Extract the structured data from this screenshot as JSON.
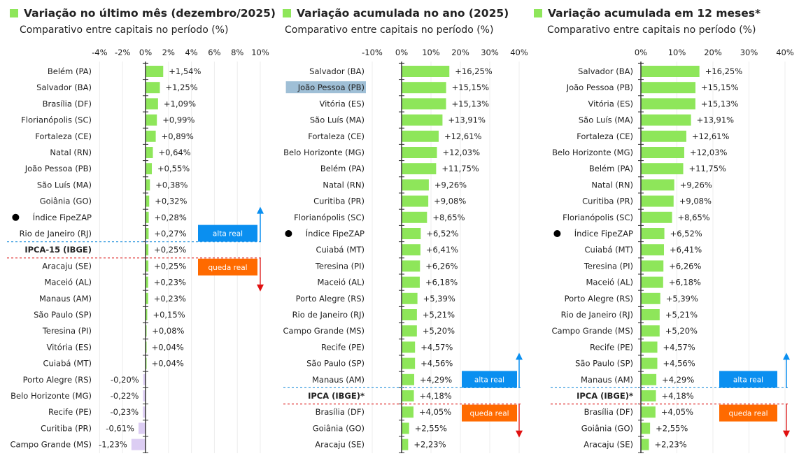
{
  "colors": {
    "bar": "#8ee65a",
    "neg_bar": "#dccdf3",
    "alta": "#0a8ff0",
    "queda": "#ff6a00",
    "alta_line": "#3a9de0",
    "queda_line": "#e03030",
    "highlight": "#9fbfd6"
  },
  "chart_data": [
    {
      "type": "bar",
      "orientation": "horizontal",
      "title": "Variação no último mês (dezembro/2025)",
      "subtitle": "Comparativo entre capitais no período (%)",
      "xlim": [
        -4,
        10
      ],
      "xticks": [
        -4,
        -2,
        0,
        2,
        4,
        6,
        8,
        10
      ],
      "xtick_labels": [
        "-4%",
        "-2%",
        "0%",
        "2%",
        "4%",
        "6%",
        "8%",
        "10%"
      ],
      "categories": [
        "Belém (PA)",
        "Salvador (BA)",
        "Brasília (DF)",
        "Florianópolis (SC)",
        "Fortaleza (CE)",
        "Natal (RN)",
        "João Pessoa (PB)",
        "São Luís (MA)",
        "Goiânia (GO)",
        "Índice FipeZAP",
        "Rio de Janeiro (RJ)",
        "IPCA-15 (IBGE)",
        "Aracaju (SE)",
        "Maceió (AL)",
        "Manaus (AM)",
        "São Paulo (SP)",
        "Teresina (PI)",
        "Vitória (ES)",
        "Cuiabá (MT)",
        "Porto Alegre (RS)",
        "Belo Horizonte (MG)",
        "Recife (PE)",
        "Curitiba (PR)",
        "Campo Grande (MS)"
      ],
      "values": [
        1.54,
        1.25,
        1.09,
        0.99,
        0.89,
        0.64,
        0.55,
        0.38,
        0.32,
        0.28,
        0.27,
        0.25,
        0.25,
        0.23,
        0.23,
        0.15,
        0.08,
        0.04,
        0.04,
        -0.2,
        -0.22,
        -0.23,
        -0.61,
        -1.23
      ],
      "value_labels": [
        "+1,54%",
        "+1,25%",
        "+1,09%",
        "+0,99%",
        "+0,89%",
        "+0,64%",
        "+0,55%",
        "+0,38%",
        "+0,32%",
        "+0,28%",
        "+0,27%",
        "+0,25%",
        "+0,25%",
        "+0,23%",
        "+0,23%",
        "+0,15%",
        "+0,08%",
        "+0,04%",
        "+0,04%",
        "-0,20%",
        "-0,22%",
        "-0,23%",
        "-0,61%",
        "-1,23%"
      ],
      "index_category": "Índice FipeZAP",
      "reference_category": "IPCA-15 (IBGE)",
      "highlight_category": null,
      "annotations": {
        "alta": "alta real",
        "queda": "queda real"
      }
    },
    {
      "type": "bar",
      "orientation": "horizontal",
      "title": "Variação acumulada no ano (2025)",
      "subtitle": "Comparativo entre capitais no período (%)",
      "xlim": [
        -10,
        40
      ],
      "xticks": [
        -10,
        0,
        10,
        20,
        30,
        40
      ],
      "xtick_labels": [
        "-10%",
        "0%",
        "10%",
        "20%",
        "30%",
        "40%"
      ],
      "categories": [
        "Salvador (BA)",
        "João Pessoa (PB)",
        "Vitória (ES)",
        "São Luís (MA)",
        "Fortaleza (CE)",
        "Belo Horizonte (MG)",
        "Belém (PA)",
        "Natal (RN)",
        "Curitiba (PR)",
        "Florianópolis (SC)",
        "Índice FipeZAP",
        "Cuiabá (MT)",
        "Teresina (PI)",
        "Maceió (AL)",
        "Porto Alegre (RS)",
        "Rio de Janeiro (RJ)",
        "Campo Grande (MS)",
        "Recife (PE)",
        "São Paulo (SP)",
        "Manaus (AM)",
        "IPCA (IBGE)*",
        "Brasília (DF)",
        "Goiânia (GO)",
        "Aracaju (SE)"
      ],
      "values": [
        16.25,
        15.15,
        15.13,
        13.91,
        12.61,
        12.03,
        11.75,
        9.26,
        9.08,
        8.65,
        6.52,
        6.41,
        6.26,
        6.18,
        5.39,
        5.21,
        5.2,
        4.57,
        4.56,
        4.29,
        4.18,
        4.05,
        2.55,
        2.23
      ],
      "value_labels": [
        "+16,25%",
        "+15,15%",
        "+15,13%",
        "+13,91%",
        "+12,61%",
        "+12,03%",
        "+11,75%",
        "+9,26%",
        "+9,08%",
        "+8,65%",
        "+6,52%",
        "+6,41%",
        "+6,26%",
        "+6,18%",
        "+5,39%",
        "+5,21%",
        "+5,20%",
        "+4,57%",
        "+4,56%",
        "+4,29%",
        "+4,18%",
        "+4,05%",
        "+2,55%",
        "+2,23%"
      ],
      "index_category": "Índice FipeZAP",
      "reference_category": "IPCA (IBGE)*",
      "highlight_category": "João Pessoa (PB)",
      "annotations": {
        "alta": "alta real",
        "queda": "queda real"
      }
    },
    {
      "type": "bar",
      "orientation": "horizontal",
      "title": "Variação acumulada em 12 meses*",
      "subtitle": "Comparativo entre capitais no período (%)",
      "xlim": [
        0,
        40
      ],
      "xticks": [
        0,
        10,
        20,
        30,
        40
      ],
      "xtick_labels": [
        "0%",
        "10%",
        "20%",
        "30%",
        "40%"
      ],
      "categories": [
        "Salvador (BA)",
        "João Pessoa (PB)",
        "Vitória (ES)",
        "São Luís (MA)",
        "Fortaleza (CE)",
        "Belo Horizonte (MG)",
        "Belém (PA)",
        "Natal (RN)",
        "Curitiba (PR)",
        "Florianópolis (SC)",
        "Índice FipeZAP",
        "Cuiabá (MT)",
        "Teresina (PI)",
        "Maceió (AL)",
        "Porto Alegre (RS)",
        "Rio de Janeiro (RJ)",
        "Campo Grande (MS)",
        "Recife (PE)",
        "São Paulo (SP)",
        "Manaus (AM)",
        "IPCA (IBGE)*",
        "Brasília (DF)",
        "Goiânia (GO)",
        "Aracaju (SE)"
      ],
      "values": [
        16.25,
        15.15,
        15.13,
        13.91,
        12.61,
        12.03,
        11.75,
        9.26,
        9.08,
        8.65,
        6.52,
        6.41,
        6.26,
        6.18,
        5.39,
        5.21,
        5.2,
        4.57,
        4.56,
        4.29,
        4.18,
        4.05,
        2.55,
        2.23
      ],
      "value_labels": [
        "+16,25%",
        "+15,15%",
        "+15,13%",
        "+13,91%",
        "+12,61%",
        "+12,03%",
        "+11,75%",
        "+9,26%",
        "+9,08%",
        "+8,65%",
        "+6,52%",
        "+6,41%",
        "+6,26%",
        "+6,18%",
        "+5,39%",
        "+5,21%",
        "+5,20%",
        "+4,57%",
        "+4,56%",
        "+4,29%",
        "+4,18%",
        "+4,05%",
        "+2,55%",
        "+2,23%"
      ],
      "index_category": "Índice FipeZAP",
      "reference_category": "IPCA (IBGE)*",
      "highlight_category": null,
      "annotations": {
        "alta": "alta real",
        "queda": "queda real"
      }
    }
  ]
}
